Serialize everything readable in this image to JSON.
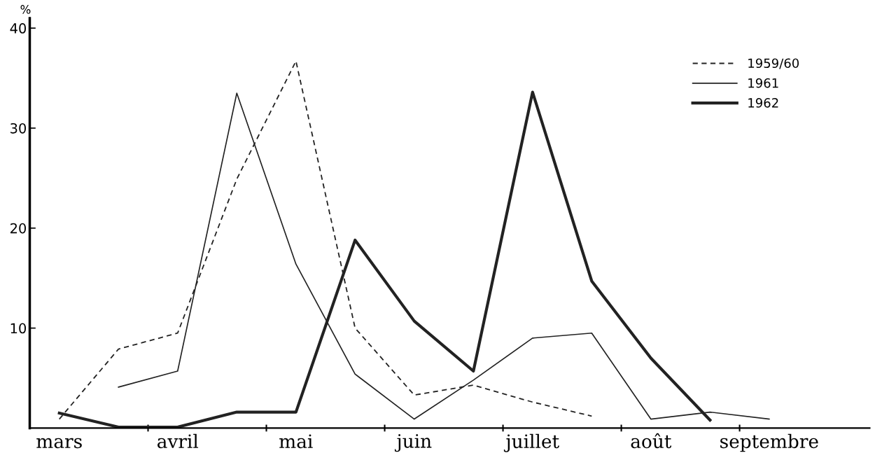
{
  "chart_data": {
    "type": "line",
    "ylabel": "%",
    "categories": [
      "mars",
      null,
      "avril",
      null,
      "mai",
      null,
      "juin",
      null,
      "juillet",
      null,
      "août",
      null,
      "septembre",
      null
    ],
    "ylim": [
      0,
      41
    ],
    "yticks": [
      10,
      20,
      30,
      40
    ],
    "grid": false,
    "legend": "top right",
    "marker": "none",
    "series": [
      {
        "name": "1959/60",
        "color": "#222222",
        "line_style": "dashed",
        "values": [
          0.9,
          7.9,
          9.5,
          24.9,
          36.7,
          10.0,
          3.3,
          4.3,
          2.6,
          1.2,
          null,
          null,
          null,
          null
        ]
      },
      {
        "name": "1961",
        "color": "#222222",
        "line_style": "solid",
        "values": [
          null,
          4.1,
          5.7,
          33.5,
          16.4,
          5.4,
          0.9,
          4.8,
          9.0,
          9.5,
          0.9,
          1.6,
          0.9,
          null
        ]
      },
      {
        "name": "1962",
        "color": "#222222",
        "line_style": "solid",
        "values": [
          1.5,
          0.1,
          0.1,
          1.6,
          1.6,
          18.8,
          10.7,
          5.7,
          33.6,
          14.7,
          7.0,
          0.8,
          null,
          null
        ]
      }
    ]
  }
}
